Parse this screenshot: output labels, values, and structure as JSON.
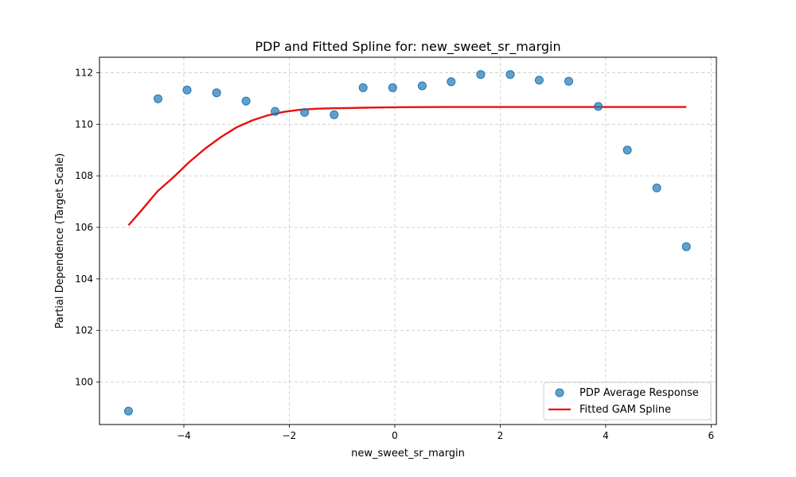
{
  "chart_data": {
    "type": "scatter",
    "title": "PDP and Fitted Spline for: new_sweet_sr_margin",
    "xlabel": "new_sweet_sr_margin",
    "ylabel": "Partial Dependence (Target Scale)",
    "xlim": [
      -5.6,
      6.1
    ],
    "ylim": [
      98.35,
      112.6
    ],
    "xticks": [
      -4,
      -2,
      0,
      2,
      4,
      6
    ],
    "yticks": [
      100,
      102,
      104,
      106,
      108,
      110,
      112
    ],
    "grid": true,
    "legend_position": "lower-right",
    "series": [
      {
        "name": "PDP Average Response",
        "kind": "scatter",
        "color": "#1f77b4",
        "x": [
          -5.05,
          -4.49,
          -3.94,
          -3.38,
          -2.82,
          -2.27,
          -1.71,
          -1.15,
          -0.6,
          -0.04,
          0.52,
          1.07,
          1.63,
          2.19,
          2.74,
          3.3,
          3.86,
          4.41,
          4.97,
          5.53
        ],
        "y": [
          98.87,
          110.99,
          111.33,
          111.22,
          110.9,
          110.5,
          110.46,
          110.37,
          111.42,
          111.42,
          111.49,
          111.65,
          111.93,
          111.93,
          111.71,
          111.67,
          110.69,
          109.0,
          107.53,
          105.25
        ]
      },
      {
        "name": "Fitted GAM Spline",
        "kind": "line",
        "color": "#e8110f",
        "x": [
          -5.05,
          -4.8,
          -4.5,
          -4.2,
          -3.9,
          -3.6,
          -3.3,
          -3.0,
          -2.7,
          -2.4,
          -2.1,
          -1.8,
          -1.5,
          -1.2,
          -0.9,
          -0.6,
          -0.3,
          0.0,
          1.0,
          2.0,
          3.0,
          4.0,
          5.0,
          5.53
        ],
        "y": [
          106.08,
          106.67,
          107.4,
          107.94,
          108.53,
          109.05,
          109.5,
          109.88,
          110.15,
          110.35,
          110.48,
          110.56,
          110.6,
          110.62,
          110.63,
          110.64,
          110.65,
          110.66,
          110.67,
          110.67,
          110.67,
          110.67,
          110.67,
          110.67
        ]
      }
    ]
  }
}
